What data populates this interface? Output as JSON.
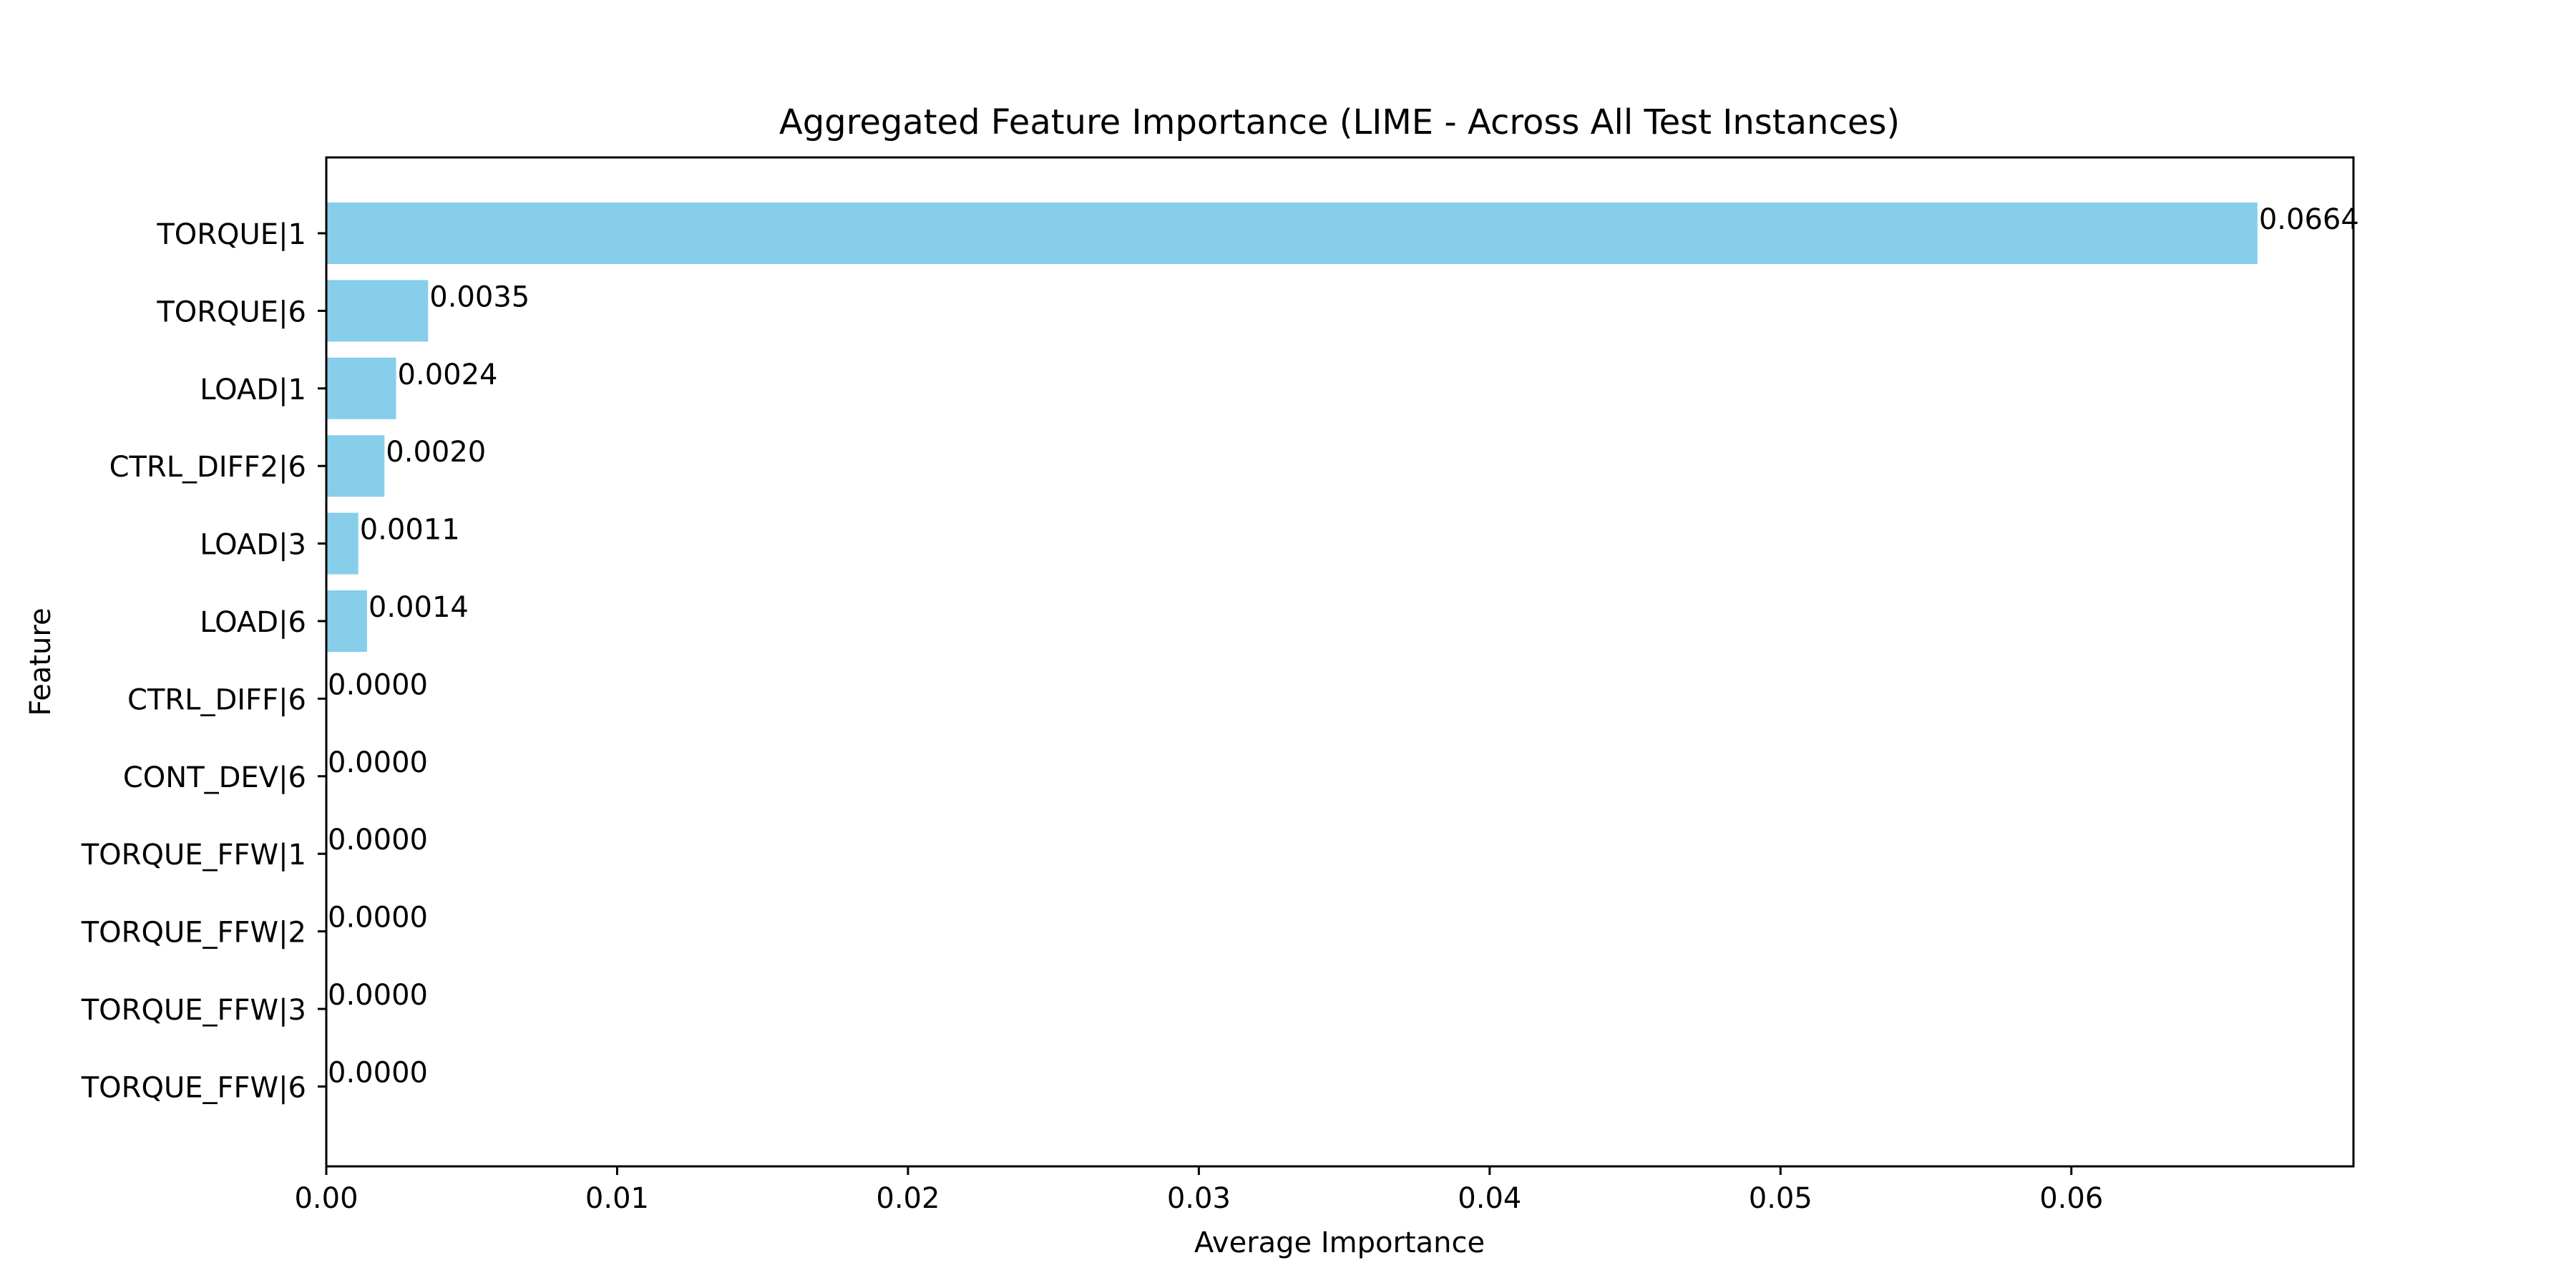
{
  "chart_data": {
    "type": "bar",
    "orientation": "horizontal",
    "title": "Aggregated Feature Importance (LIME - Across All Test Instances)",
    "xlabel": "Average Importance",
    "ylabel": "Feature",
    "categories": [
      "TORQUE|1",
      "TORQUE|6",
      "LOAD|1",
      "CTRL_DIFF2|6",
      "LOAD|3",
      "LOAD|6",
      "CTRL_DIFF|6",
      "CONT_DEV|6",
      "TORQUE_FFW|1",
      "TORQUE_FFW|2",
      "TORQUE_FFW|3",
      "TORQUE_FFW|6"
    ],
    "values": [
      0.0664,
      0.0035,
      0.0024,
      0.002,
      0.0011,
      0.0014,
      0.0,
      0.0,
      0.0,
      0.0,
      0.0,
      0.0
    ],
    "value_labels": [
      "0.0664",
      "0.0035",
      "0.0024",
      "0.0020",
      "0.0011",
      "0.0014",
      "0.0000",
      "0.0000",
      "0.0000",
      "0.0000",
      "0.0000",
      "0.0000"
    ],
    "xlim": [
      0,
      0.0697
    ],
    "xticks": [
      0.0,
      0.01,
      0.02,
      0.03,
      0.04,
      0.05,
      0.06
    ],
    "xtick_labels": [
      "0.00",
      "0.01",
      "0.02",
      "0.03",
      "0.04",
      "0.05",
      "0.06"
    ],
    "bar_color": "#87CEEB",
    "grid": false,
    "legend": "none"
  }
}
